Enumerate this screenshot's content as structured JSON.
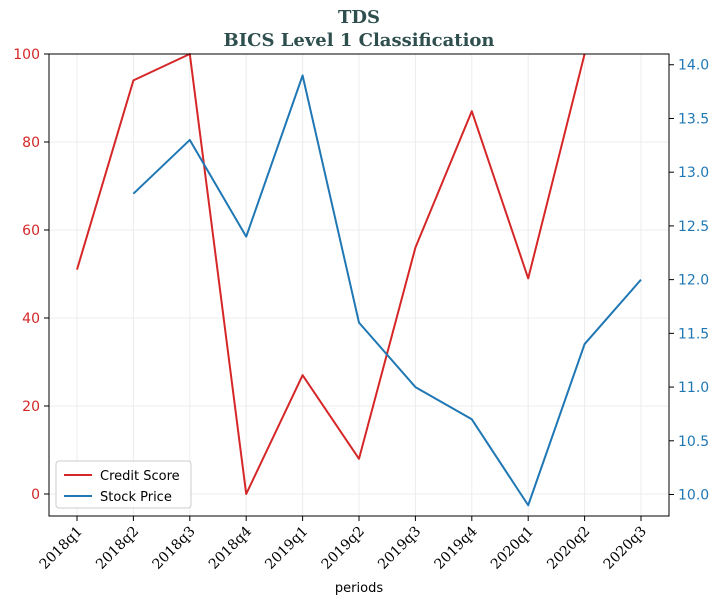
{
  "chart_data": {
    "type": "line",
    "title": "TDS",
    "subtitle": "BICS Level 1 Classification",
    "xlabel": "periods",
    "categories": [
      "2018q1",
      "2018q2",
      "2018q3",
      "2018q4",
      "2019q1",
      "2019q2",
      "2019q3",
      "2019q4",
      "2020q1",
      "2020q2",
      "2020q3"
    ],
    "series": [
      {
        "name": "Credit Score",
        "axis": "left",
        "color": "#d62728",
        "values": [
          51,
          94,
          100,
          0,
          27,
          8,
          56,
          87,
          49,
          100,
          null
        ]
      },
      {
        "name": "Stock Price",
        "axis": "right",
        "color": "#1f77b4",
        "values": [
          null,
          12.8,
          13.3,
          12.4,
          13.9,
          11.6,
          11.0,
          10.7,
          9.9,
          11.4,
          12.0
        ]
      }
    ],
    "y_left": {
      "ylim": [
        -5,
        100
      ],
      "ticks": [
        "0",
        "20",
        "40",
        "60",
        "80",
        "100"
      ],
      "color": "#d62728"
    },
    "y_right": {
      "ylim": [
        9.8,
        14.1
      ],
      "ticks": [
        "10.0",
        "10.5",
        "11.0",
        "11.5",
        "12.0",
        "12.5",
        "13.0",
        "13.5",
        "14.0"
      ],
      "color": "#1f77b4"
    },
    "grid": true,
    "legend_position": "bottom-left"
  }
}
